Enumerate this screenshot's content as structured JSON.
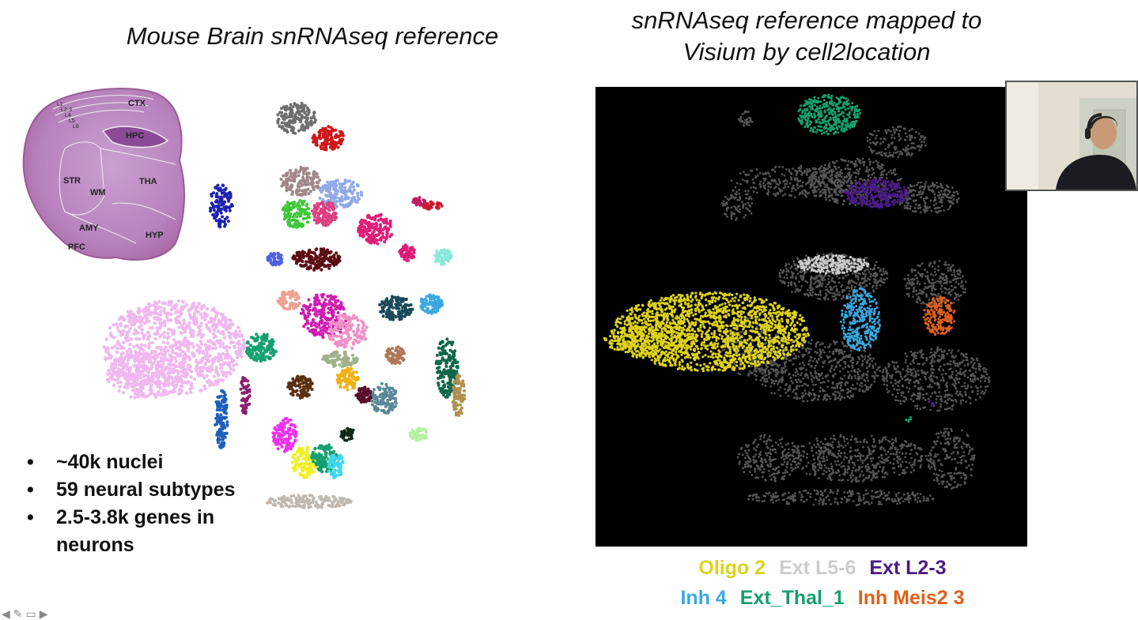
{
  "slide": {
    "left_title": "Mouse Brain snRNAseq reference",
    "right_title_line1": "snRNAseq reference mapped to",
    "right_title_line2": "Visium by cell2location"
  },
  "brain_section": {
    "regions": [
      "CTX",
      "HPC",
      "STR",
      "WM",
      "THA",
      "AMY",
      "HYP",
      "PFC"
    ],
    "layers": [
      "L1",
      "L2-3",
      "L4",
      "L5",
      "L6"
    ]
  },
  "bullets": [
    {
      "text": "~40k nuclei"
    },
    {
      "text": "59 neural subtypes"
    },
    {
      "text": "2.5-3.8k genes in neurons"
    }
  ],
  "legend": [
    {
      "label": "Oligo 2",
      "color": "#ddd21a"
    },
    {
      "label": "Ext L5-6",
      "color": "#cccccc"
    },
    {
      "label": "Ext L2-3",
      "color": "#4a1a88"
    },
    {
      "label": "Inh 4",
      "color": "#3aa8e0"
    },
    {
      "label": "Ext_Thal_1",
      "color": "#14a06e"
    },
    {
      "label": "Inh Meis2 3",
      "color": "#e0601a"
    }
  ],
  "nav_icons": [
    "arrow-left-icon",
    "pencil-icon",
    "screen-icon",
    "arrow-right-icon"
  ]
}
